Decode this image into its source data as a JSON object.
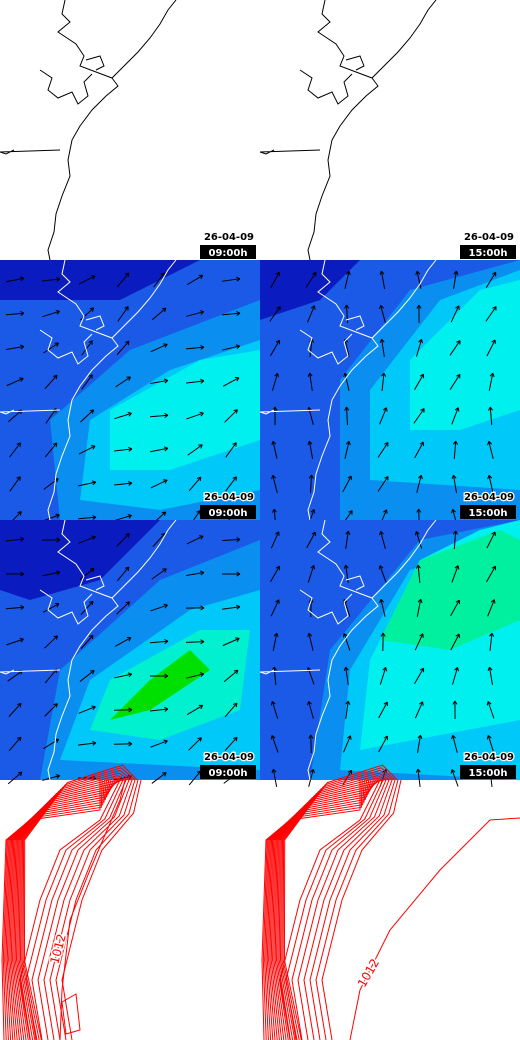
{
  "panels": [
    {
      "date": "26-04-09",
      "time": "09:00h"
    },
    {
      "date": "26-04-09",
      "time": "15:00h"
    },
    {
      "date": "26-04-09",
      "time": "09:00h"
    },
    {
      "date": "26-04-09",
      "time": "15:00h"
    },
    {
      "date": "26-04-09",
      "time": "09:00h"
    },
    {
      "date": "26-04-09",
      "time": "15:00h"
    }
  ],
  "contour_labels": [
    "1012",
    "1012"
  ]
}
